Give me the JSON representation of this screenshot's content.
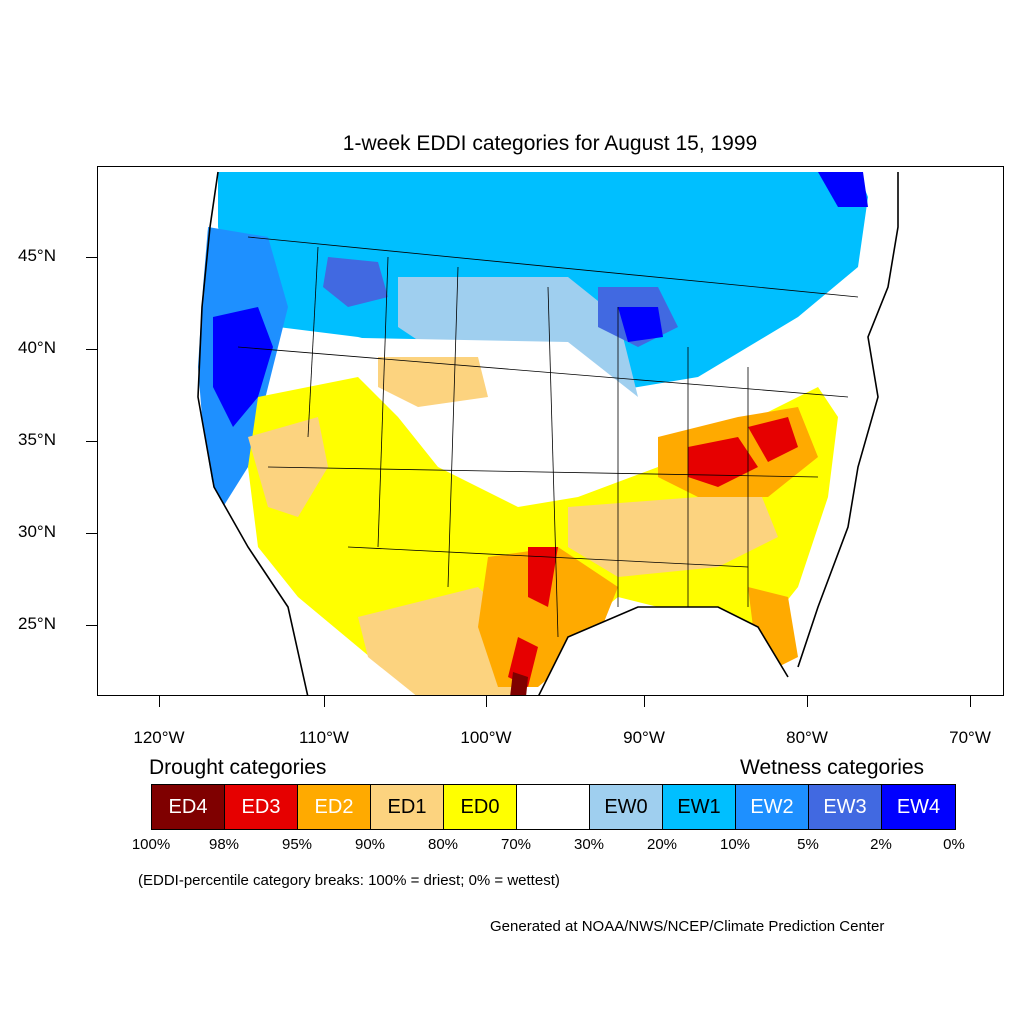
{
  "title": "1-week EDDI categories for August 15, 1999",
  "lat_labels": [
    "45°N",
    "40°N",
    "35°N",
    "30°N",
    "25°N"
  ],
  "lon_labels": [
    "120°W",
    "110°W",
    "100°W",
    "90°W",
    "80°W",
    "70°W"
  ],
  "legend": {
    "drought_heading": "Drought categories",
    "wetness_heading": "Wetness categories",
    "categories": [
      {
        "label": "ED4",
        "color": "#7f0000",
        "text_color": "#ffffff"
      },
      {
        "label": "ED3",
        "color": "#e60000",
        "text_color": "#ffffff"
      },
      {
        "label": "ED2",
        "color": "#ffaa00",
        "text_color": "#ffffff"
      },
      {
        "label": "ED1",
        "color": "#fcd37f",
        "text_color": "#000000"
      },
      {
        "label": "ED0",
        "color": "#ffff00",
        "text_color": "#000000"
      },
      {
        "label": "",
        "color": "#ffffff",
        "text_color": "#000000"
      },
      {
        "label": "EW0",
        "color": "#9fcfef",
        "text_color": "#000000"
      },
      {
        "label": "EW1",
        "color": "#00bfff",
        "text_color": "#000000"
      },
      {
        "label": "EW2",
        "color": "#1e90ff",
        "text_color": "#ffffff"
      },
      {
        "label": "EW3",
        "color": "#4169e1",
        "text_color": "#ffffff"
      },
      {
        "label": "EW4",
        "color": "#0000ff",
        "text_color": "#ffffff"
      }
    ],
    "percentiles": [
      "100%",
      "98%",
      "95%",
      "90%",
      "80%",
      "70%",
      "30%",
      "20%",
      "10%",
      "5%",
      "2%",
      "0%"
    ]
  },
  "note": "(EDDI-percentile category breaks: 100% = driest; 0% = wettest)",
  "credit": "Generated at NOAA/NWS/NCEP/Climate Prediction Center"
}
